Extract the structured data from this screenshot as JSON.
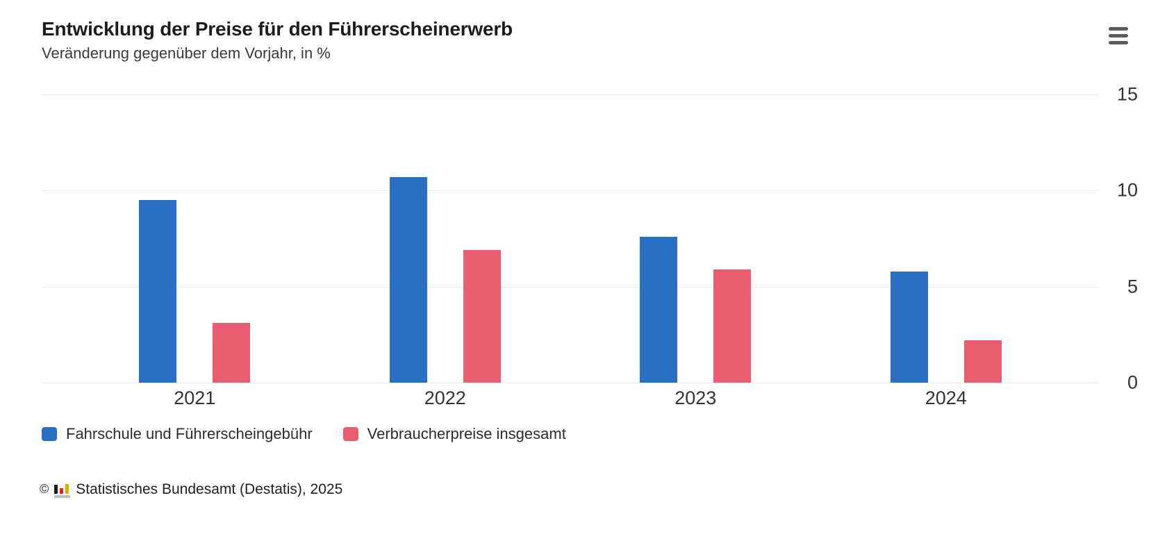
{
  "header": {
    "title": "Entwicklung der Preise für den Führerscheinerwerb",
    "subtitle": "Veränderung gegenüber dem Vorjahr, in %",
    "menu_icon": "hamburger-menu-icon"
  },
  "chart_data": {
    "type": "bar",
    "title": "Entwicklung der Preise für den Führerscheinerwerb",
    "subtitle": "Veränderung gegenüber dem Vorjahr, in %",
    "categories": [
      "2021",
      "2022",
      "2023",
      "2024"
    ],
    "series": [
      {
        "name": "Fahrschule und Führerscheingebühr",
        "color": "#2970c4",
        "values": [
          9.5,
          10.7,
          7.6,
          5.8
        ]
      },
      {
        "name": "Verbraucherpreise insgesamt",
        "color": "#ea5d71",
        "values": [
          3.1,
          6.9,
          5.9,
          2.2
        ]
      }
    ],
    "xlabel": "",
    "ylabel": "",
    "ylim": [
      0,
      15
    ],
    "yticks": [
      0,
      5,
      10,
      15
    ],
    "y_axis_side": "right",
    "grid": true,
    "legend_position": "bottom"
  },
  "legend": {
    "items": [
      {
        "label": "Fahrschule und Führerscheingebühr",
        "color": "#2970c4"
      },
      {
        "label": "Verbraucherpreise insgesamt",
        "color": "#ea5d71"
      }
    ]
  },
  "footer": {
    "copyright": "©",
    "logo_icon": "destatis-bar-chart-logo",
    "source": "Statistisches Bundesamt (Destatis), 2025"
  },
  "colors": {
    "series_blue": "#2970c4",
    "series_red": "#ea5d71",
    "gridline": "#e9e9e9",
    "text_dark": "#1d1d1d",
    "text_gray": "#333333",
    "menu_icon": "#5c5c5c"
  }
}
